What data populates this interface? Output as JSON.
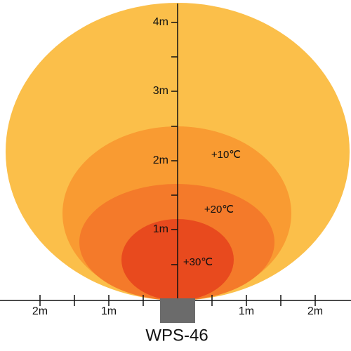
{
  "title": "WPS-46",
  "vertical_axis": {
    "labels": [
      "4m",
      "3m",
      "2m",
      "1m"
    ]
  },
  "horizontal_axis": {
    "labels": [
      "2m",
      "1m",
      "1m",
      "2m"
    ]
  },
  "zones": [
    {
      "label": "+10℃"
    },
    {
      "label": "+20℃"
    },
    {
      "label": "+30℃"
    }
  ]
}
